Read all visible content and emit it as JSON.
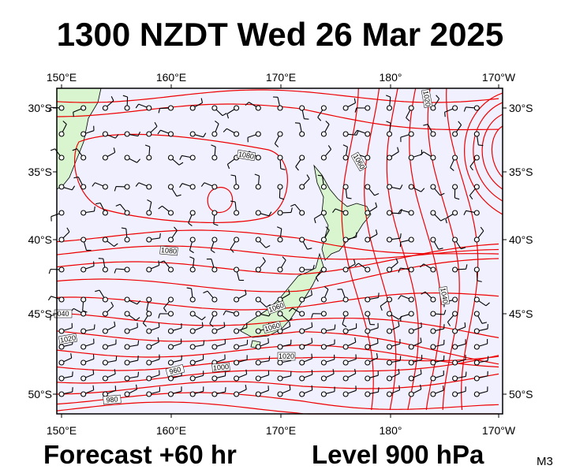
{
  "title": "1300 NZDT Wed 26 Mar 2025",
  "map": {
    "longitudes": [
      "150°E",
      "160°E",
      "170°E",
      "180°",
      "170°W"
    ],
    "latitudes": [
      "30°S",
      "35°S",
      "40°S",
      "45°S",
      "50°S"
    ],
    "contour_labels": [
      "1020",
      "1080",
      "1060",
      "1080",
      "1060",
      "1040",
      "040",
      "1020",
      "1060",
      "1020",
      "1000",
      "960",
      "980"
    ]
  },
  "footer": {
    "forecast": "Forecast +60 hr",
    "level": "Level 900 hPa",
    "code": "M3"
  }
}
